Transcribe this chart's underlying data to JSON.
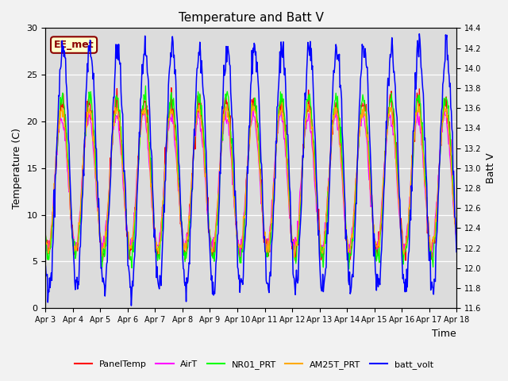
{
  "title": "Temperature and Batt V",
  "xlabel": "Time",
  "ylabel_left": "Temperature (C)",
  "ylabel_right": "Batt V",
  "annotation": "EE_met",
  "ylim_left": [
    0,
    30
  ],
  "ylim_right": [
    11.6,
    14.4
  ],
  "yticks_left": [
    0,
    5,
    10,
    15,
    20,
    25,
    30
  ],
  "yticks_right": [
    11.6,
    11.8,
    12.0,
    12.2,
    12.4,
    12.6,
    12.8,
    13.0,
    13.2,
    13.4,
    13.6,
    13.8,
    14.0,
    14.2,
    14.4
  ],
  "xtick_labels": [
    "Apr 3",
    "Apr 4",
    "Apr 5",
    "Apr 6",
    "Apr 7",
    "Apr 8",
    "Apr 9",
    "Apr 10",
    "Apr 11",
    "Apr 12",
    "Apr 13",
    "Apr 14",
    "Apr 15",
    "Apr 16",
    "Apr 17",
    "Apr 18"
  ],
  "n_days": 15,
  "background_color": "#dcdcdc",
  "grid_color": "#ffffff",
  "colors": {
    "PanelTemp": "#ff0000",
    "AirT": "#ff00ff",
    "NR01_PRT": "#00ff00",
    "AM25T_PRT": "#ffaa00",
    "batt_volt": "#0000ff"
  },
  "legend_labels": [
    "PanelTemp",
    "AirT",
    "NR01_PRT",
    "AM25T_PRT",
    "batt_volt"
  ]
}
